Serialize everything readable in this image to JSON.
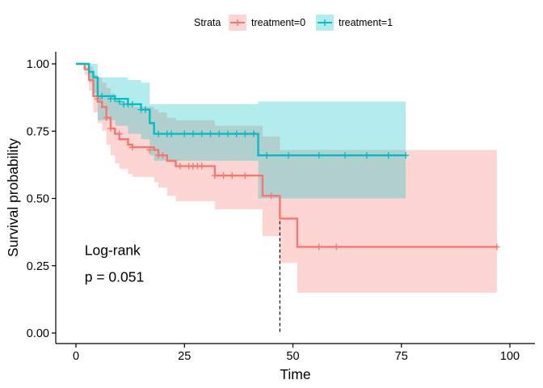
{
  "chart_data": {
    "type": "line",
    "xlabel": "Time",
    "ylabel": "Survival probability",
    "xlim": [
      0,
      100
    ],
    "ylim": [
      0,
      1
    ],
    "x_ticks": [
      0,
      25,
      50,
      75,
      100
    ],
    "y_ticks": [
      0,
      0.25,
      0.5,
      0.75,
      1.0
    ],
    "x_tick_labels": [
      "0",
      "25",
      "50",
      "75",
      "100"
    ],
    "y_tick_labels": [
      "0.00",
      "0.25",
      "0.50",
      "0.75",
      "1.00"
    ],
    "grid": false,
    "legend": {
      "title": "Strata",
      "position": "top"
    },
    "annotation": {
      "line1": "Log-rank",
      "line2": "p = 0.051",
      "x": 2,
      "y1": 0.29,
      "y2": 0.19
    },
    "median_line": {
      "x": 47,
      "y_from": 0,
      "y_to": 0.5
    },
    "series": [
      {
        "name": "treatment=0",
        "color": "#F8766D",
        "fill": "#F8766D",
        "steps": [
          [
            0,
            1.0
          ],
          [
            2,
            0.98
          ],
          [
            3,
            0.94
          ],
          [
            4,
            0.88
          ],
          [
            5,
            0.86
          ],
          [
            6,
            0.84
          ],
          [
            7,
            0.8
          ],
          [
            8,
            0.76
          ],
          [
            9,
            0.74
          ],
          [
            10,
            0.72
          ],
          [
            12,
            0.7
          ],
          [
            13,
            0.69
          ],
          [
            18,
            0.68
          ],
          [
            19,
            0.66
          ],
          [
            21,
            0.64
          ],
          [
            23,
            0.62
          ],
          [
            32,
            0.585
          ],
          [
            43,
            0.51
          ],
          [
            47,
            0.425
          ],
          [
            51,
            0.32
          ],
          [
            97,
            0.32
          ]
        ],
        "lower": [
          [
            0,
            1.0
          ],
          [
            2,
            0.96
          ],
          [
            3,
            0.9
          ],
          [
            4,
            0.82
          ],
          [
            5,
            0.78
          ],
          [
            6,
            0.75
          ],
          [
            7,
            0.7
          ],
          [
            8,
            0.66
          ],
          [
            9,
            0.63
          ],
          [
            10,
            0.61
          ],
          [
            12,
            0.59
          ],
          [
            13,
            0.58
          ],
          [
            18,
            0.56
          ],
          [
            19,
            0.54
          ],
          [
            21,
            0.51
          ],
          [
            23,
            0.49
          ],
          [
            32,
            0.46
          ],
          [
            43,
            0.36
          ],
          [
            47,
            0.26
          ],
          [
            51,
            0.15
          ],
          [
            97,
            0.15
          ]
        ],
        "upper": [
          [
            0,
            1.0
          ],
          [
            2,
            1.0
          ],
          [
            3,
            0.99
          ],
          [
            4,
            0.96
          ],
          [
            5,
            0.95
          ],
          [
            6,
            0.93
          ],
          [
            7,
            0.91
          ],
          [
            8,
            0.89
          ],
          [
            9,
            0.87
          ],
          [
            10,
            0.86
          ],
          [
            12,
            0.85
          ],
          [
            13,
            0.84
          ],
          [
            18,
            0.83
          ],
          [
            19,
            0.82
          ],
          [
            21,
            0.8
          ],
          [
            23,
            0.79
          ],
          [
            32,
            0.77
          ],
          [
            43,
            0.73
          ],
          [
            47,
            0.68
          ],
          [
            51,
            0.68
          ],
          [
            97,
            0.68
          ]
        ],
        "censored": [
          [
            5,
            0.87
          ],
          [
            7,
            0.8
          ],
          [
            8,
            0.76
          ],
          [
            10,
            0.74
          ],
          [
            13,
            0.69
          ],
          [
            17,
            0.68
          ],
          [
            19,
            0.66
          ],
          [
            20,
            0.66
          ],
          [
            24,
            0.62
          ],
          [
            26,
            0.62
          ],
          [
            27,
            0.62
          ],
          [
            28,
            0.62
          ],
          [
            29,
            0.62
          ],
          [
            32,
            0.585
          ],
          [
            34,
            0.585
          ],
          [
            36,
            0.585
          ],
          [
            39,
            0.585
          ],
          [
            45,
            0.51
          ],
          [
            56,
            0.32
          ],
          [
            60,
            0.32
          ],
          [
            97,
            0.32
          ]
        ]
      },
      {
        "name": "treatment=1",
        "color": "#00BFC4",
        "fill": "#00BFC4",
        "steps": [
          [
            0,
            1.0
          ],
          [
            3,
            0.97
          ],
          [
            4,
            0.95
          ],
          [
            5,
            0.88
          ],
          [
            9,
            0.87
          ],
          [
            12,
            0.85
          ],
          [
            15,
            0.83
          ],
          [
            17,
            0.78
          ],
          [
            18,
            0.74
          ],
          [
            42,
            0.66
          ],
          [
            76,
            0.66
          ]
        ],
        "lower": [
          [
            0,
            1.0
          ],
          [
            3,
            0.93
          ],
          [
            4,
            0.89
          ],
          [
            5,
            0.79
          ],
          [
            9,
            0.77
          ],
          [
            12,
            0.74
          ],
          [
            15,
            0.72
          ],
          [
            17,
            0.66
          ],
          [
            18,
            0.64
          ],
          [
            42,
            0.5
          ],
          [
            76,
            0.5
          ]
        ],
        "upper": [
          [
            0,
            1.0
          ],
          [
            3,
            1.0
          ],
          [
            4,
            1.0
          ],
          [
            5,
            0.95
          ],
          [
            9,
            0.95
          ],
          [
            12,
            0.94
          ],
          [
            15,
            0.93
          ],
          [
            17,
            0.85
          ],
          [
            18,
            0.85
          ],
          [
            42,
            0.86
          ],
          [
            76,
            0.86
          ]
        ],
        "censored": [
          [
            6,
            0.88
          ],
          [
            8,
            0.87
          ],
          [
            9,
            0.87
          ],
          [
            10,
            0.86
          ],
          [
            11,
            0.85
          ],
          [
            12,
            0.85
          ],
          [
            13,
            0.85
          ],
          [
            15,
            0.83
          ],
          [
            16,
            0.83
          ],
          [
            19,
            0.74
          ],
          [
            21,
            0.74
          ],
          [
            22,
            0.74
          ],
          [
            25,
            0.74
          ],
          [
            27,
            0.74
          ],
          [
            29,
            0.74
          ],
          [
            31,
            0.74
          ],
          [
            33,
            0.74
          ],
          [
            35,
            0.74
          ],
          [
            37,
            0.74
          ],
          [
            39,
            0.74
          ],
          [
            41,
            0.74
          ],
          [
            44,
            0.66
          ],
          [
            49,
            0.66
          ],
          [
            56,
            0.66
          ],
          [
            62,
            0.66
          ],
          [
            67,
            0.66
          ],
          [
            72,
            0.66
          ],
          [
            76,
            0.66
          ]
        ]
      }
    ]
  }
}
